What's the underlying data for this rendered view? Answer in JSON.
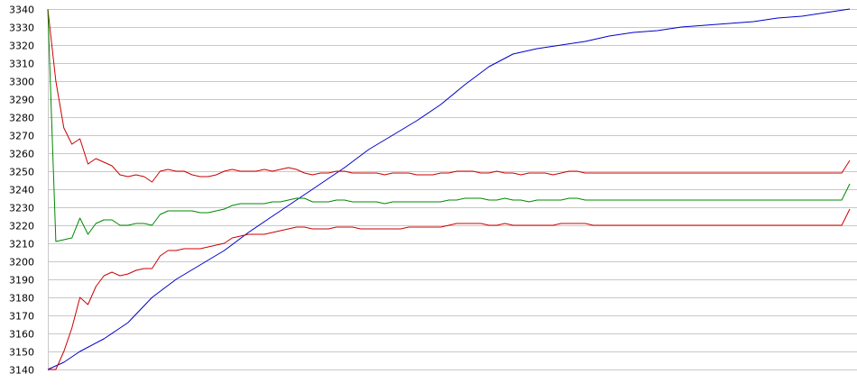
{
  "chart_data": {
    "type": "line",
    "title": "",
    "xlabel": "",
    "ylabel": "",
    "ylim": [
      3140,
      3340
    ],
    "xlim": [
      0,
      100
    ],
    "y_ticks": [
      3140,
      3150,
      3160,
      3170,
      3180,
      3190,
      3200,
      3210,
      3220,
      3230,
      3240,
      3250,
      3260,
      3270,
      3280,
      3290,
      3300,
      3310,
      3320,
      3330,
      3340
    ],
    "y_tick_labels": [
      "3140",
      "3150",
      "3160",
      "3170",
      "3180",
      "3190",
      "3200",
      "3210",
      "3220",
      "3230",
      "3240",
      "3250",
      "3260",
      "3270",
      "3280",
      "3290",
      "3300",
      "3310",
      "3320",
      "3330",
      "3340"
    ],
    "grid": "horizontal",
    "legend": "none",
    "series": [
      {
        "color": "#0000cc",
        "points": [
          [
            0,
            3140
          ],
          [
            2,
            3144
          ],
          [
            4,
            3150
          ],
          [
            7,
            3157
          ],
          [
            10,
            3166
          ],
          [
            13,
            3180
          ],
          [
            16,
            3190
          ],
          [
            19,
            3198
          ],
          [
            22,
            3206
          ],
          [
            25,
            3216
          ],
          [
            28,
            3225
          ],
          [
            31,
            3234
          ],
          [
            34,
            3243
          ],
          [
            37,
            3252
          ],
          [
            40,
            3262
          ],
          [
            43,
            3270
          ],
          [
            46,
            3278
          ],
          [
            49,
            3287
          ],
          [
            52,
            3298
          ],
          [
            55,
            3308
          ],
          [
            58,
            3315
          ],
          [
            61,
            3318
          ],
          [
            64,
            3320
          ],
          [
            67,
            3322
          ],
          [
            70,
            3325
          ],
          [
            73,
            3327
          ],
          [
            76,
            3328
          ],
          [
            79,
            3330
          ],
          [
            82,
            3331
          ],
          [
            85,
            3332
          ],
          [
            88,
            3333
          ],
          [
            91,
            3335
          ],
          [
            94,
            3336
          ],
          [
            97,
            3338
          ],
          [
            100,
            3340
          ]
        ]
      },
      {
        "color": "#cc0000",
        "points": [
          [
            0,
            3340
          ],
          [
            1,
            3300
          ],
          [
            2,
            3274
          ],
          [
            3,
            3265
          ],
          [
            4,
            3268
          ],
          [
            5,
            3254
          ],
          [
            6,
            3257
          ],
          [
            7,
            3255
          ],
          [
            8,
            3253
          ],
          [
            9,
            3248
          ],
          [
            10,
            3247
          ],
          [
            11,
            3248
          ],
          [
            12,
            3247
          ],
          [
            13,
            3244
          ],
          [
            14,
            3250
          ],
          [
            15,
            3251
          ],
          [
            16,
            3250
          ],
          [
            17,
            3250
          ],
          [
            18,
            3248
          ],
          [
            19,
            3247
          ],
          [
            20,
            3247
          ],
          [
            21,
            3248
          ],
          [
            22,
            3250
          ],
          [
            23,
            3251
          ],
          [
            24,
            3250
          ],
          [
            25,
            3250
          ],
          [
            26,
            3250
          ],
          [
            27,
            3251
          ],
          [
            28,
            3250
          ],
          [
            29,
            3251
          ],
          [
            30,
            3252
          ],
          [
            31,
            3251
          ],
          [
            32,
            3249
          ],
          [
            33,
            3248
          ],
          [
            34,
            3249
          ],
          [
            35,
            3249
          ],
          [
            36,
            3250
          ],
          [
            37,
            3250
          ],
          [
            38,
            3249
          ],
          [
            39,
            3249
          ],
          [
            40,
            3249
          ],
          [
            41,
            3249
          ],
          [
            42,
            3248
          ],
          [
            43,
            3249
          ],
          [
            44,
            3249
          ],
          [
            45,
            3249
          ],
          [
            46,
            3248
          ],
          [
            47,
            3248
          ],
          [
            48,
            3248
          ],
          [
            49,
            3249
          ],
          [
            50,
            3249
          ],
          [
            51,
            3250
          ],
          [
            52,
            3250
          ],
          [
            53,
            3250
          ],
          [
            54,
            3249
          ],
          [
            55,
            3249
          ],
          [
            56,
            3250
          ],
          [
            57,
            3249
          ],
          [
            58,
            3249
          ],
          [
            59,
            3248
          ],
          [
            60,
            3249
          ],
          [
            61,
            3249
          ],
          [
            62,
            3249
          ],
          [
            63,
            3248
          ],
          [
            64,
            3249
          ],
          [
            65,
            3250
          ],
          [
            66,
            3250
          ],
          [
            67,
            3249
          ],
          [
            68,
            3249
          ],
          [
            69,
            3249
          ],
          [
            70,
            3249
          ],
          [
            71,
            3249
          ],
          [
            72,
            3249
          ],
          [
            73,
            3249
          ],
          [
            74,
            3249
          ],
          [
            75,
            3249
          ],
          [
            76,
            3249
          ],
          [
            77,
            3249
          ],
          [
            78,
            3249
          ],
          [
            79,
            3249
          ],
          [
            80,
            3249
          ],
          [
            99,
            3249
          ],
          [
            100,
            3256
          ]
        ]
      },
      {
        "color": "#008800",
        "points": [
          [
            0,
            3340
          ],
          [
            1,
            3211
          ],
          [
            2,
            3212
          ],
          [
            3,
            3213
          ],
          [
            4,
            3224
          ],
          [
            5,
            3215
          ],
          [
            6,
            3221
          ],
          [
            7,
            3223
          ],
          [
            8,
            3223
          ],
          [
            9,
            3220
          ],
          [
            10,
            3220
          ],
          [
            11,
            3221
          ],
          [
            12,
            3221
          ],
          [
            13,
            3220
          ],
          [
            14,
            3226
          ],
          [
            15,
            3228
          ],
          [
            16,
            3228
          ],
          [
            17,
            3228
          ],
          [
            18,
            3228
          ],
          [
            19,
            3227
          ],
          [
            20,
            3227
          ],
          [
            21,
            3228
          ],
          [
            22,
            3229
          ],
          [
            23,
            3231
          ],
          [
            24,
            3232
          ],
          [
            25,
            3232
          ],
          [
            26,
            3232
          ],
          [
            27,
            3232
          ],
          [
            28,
            3233
          ],
          [
            29,
            3233
          ],
          [
            30,
            3234
          ],
          [
            31,
            3235
          ],
          [
            32,
            3235
          ],
          [
            33,
            3233
          ],
          [
            34,
            3233
          ],
          [
            35,
            3233
          ],
          [
            36,
            3234
          ],
          [
            37,
            3234
          ],
          [
            38,
            3233
          ],
          [
            39,
            3233
          ],
          [
            40,
            3233
          ],
          [
            41,
            3233
          ],
          [
            42,
            3232
          ],
          [
            43,
            3233
          ],
          [
            44,
            3233
          ],
          [
            45,
            3233
          ],
          [
            46,
            3233
          ],
          [
            47,
            3233
          ],
          [
            48,
            3233
          ],
          [
            49,
            3233
          ],
          [
            50,
            3234
          ],
          [
            51,
            3234
          ],
          [
            52,
            3235
          ],
          [
            53,
            3235
          ],
          [
            54,
            3235
          ],
          [
            55,
            3234
          ],
          [
            56,
            3234
          ],
          [
            57,
            3235
          ],
          [
            58,
            3234
          ],
          [
            59,
            3234
          ],
          [
            60,
            3233
          ],
          [
            61,
            3234
          ],
          [
            62,
            3234
          ],
          [
            63,
            3234
          ],
          [
            64,
            3234
          ],
          [
            65,
            3235
          ],
          [
            66,
            3235
          ],
          [
            67,
            3234
          ],
          [
            68,
            3234
          ],
          [
            69,
            3234
          ],
          [
            70,
            3234
          ],
          [
            99,
            3234
          ],
          [
            100,
            3243
          ]
        ]
      },
      {
        "color": "#cc0000",
        "points": [
          [
            0,
            3140
          ],
          [
            1,
            3140
          ],
          [
            2,
            3150
          ],
          [
            3,
            3163
          ],
          [
            4,
            3180
          ],
          [
            5,
            3176
          ],
          [
            6,
            3186
          ],
          [
            7,
            3192
          ],
          [
            8,
            3194
          ],
          [
            9,
            3192
          ],
          [
            10,
            3193
          ],
          [
            11,
            3195
          ],
          [
            12,
            3196
          ],
          [
            13,
            3196
          ],
          [
            14,
            3203
          ],
          [
            15,
            3206
          ],
          [
            16,
            3206
          ],
          [
            17,
            3207
          ],
          [
            18,
            3207
          ],
          [
            19,
            3207
          ],
          [
            20,
            3208
          ],
          [
            21,
            3209
          ],
          [
            22,
            3210
          ],
          [
            23,
            3213
          ],
          [
            24,
            3214
          ],
          [
            25,
            3215
          ],
          [
            26,
            3215
          ],
          [
            27,
            3215
          ],
          [
            28,
            3216
          ],
          [
            29,
            3217
          ],
          [
            30,
            3218
          ],
          [
            31,
            3219
          ],
          [
            32,
            3219
          ],
          [
            33,
            3218
          ],
          [
            34,
            3218
          ],
          [
            35,
            3218
          ],
          [
            36,
            3219
          ],
          [
            37,
            3219
          ],
          [
            38,
            3219
          ],
          [
            39,
            3218
          ],
          [
            40,
            3218
          ],
          [
            41,
            3218
          ],
          [
            42,
            3218
          ],
          [
            43,
            3218
          ],
          [
            44,
            3218
          ],
          [
            45,
            3219
          ],
          [
            46,
            3219
          ],
          [
            47,
            3219
          ],
          [
            48,
            3219
          ],
          [
            49,
            3219
          ],
          [
            50,
            3220
          ],
          [
            51,
            3221
          ],
          [
            52,
            3221
          ],
          [
            53,
            3221
          ],
          [
            54,
            3221
          ],
          [
            55,
            3220
          ],
          [
            56,
            3220
          ],
          [
            57,
            3221
          ],
          [
            58,
            3220
          ],
          [
            59,
            3220
          ],
          [
            60,
            3220
          ],
          [
            61,
            3220
          ],
          [
            62,
            3220
          ],
          [
            63,
            3220
          ],
          [
            64,
            3221
          ],
          [
            65,
            3221
          ],
          [
            66,
            3221
          ],
          [
            67,
            3221
          ],
          [
            68,
            3220
          ],
          [
            69,
            3220
          ],
          [
            70,
            3220
          ],
          [
            99,
            3220
          ],
          [
            100,
            3229
          ]
        ]
      }
    ]
  }
}
